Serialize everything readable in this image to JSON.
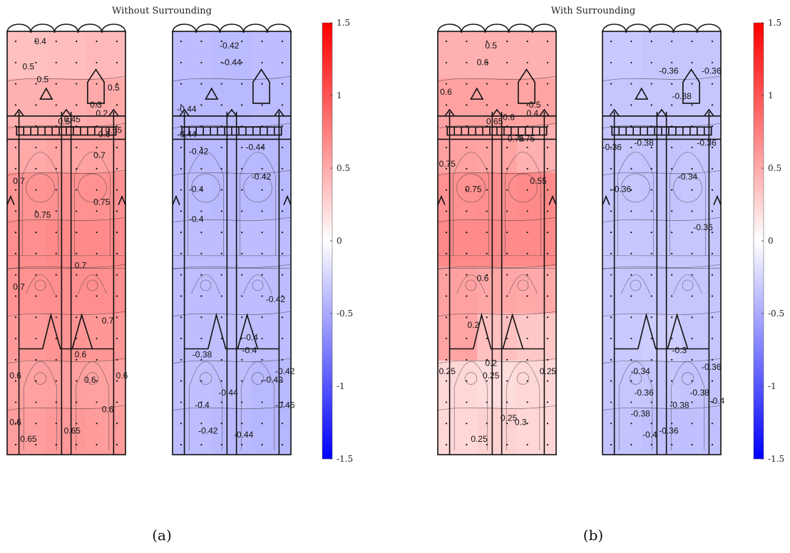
{
  "figure": {
    "captions": [
      "(a)",
      "(b)"
    ],
    "titles": [
      "Without Surrounding",
      "With Surrounding"
    ]
  },
  "chart_data": [
    {
      "type": "heatmap",
      "title": "Without Surrounding",
      "caption": "(a)",
      "colormap": {
        "min": -1.5,
        "max": 1.5,
        "low": "#0000ff",
        "mid": "#ffffff",
        "high": "#ff0000"
      },
      "colorbar_ticks": [
        "1.5",
        "1",
        "0.5",
        "0",
        "-0.5",
        "-1",
        "-1.5"
      ],
      "panels": [
        {
          "name": "windward",
          "field": [
            [
              0.4,
              0.42,
              0.45
            ],
            [
              0.5,
              0.52,
              0.55
            ],
            [
              0.55,
              0.58,
              0.6
            ],
            [
              0.68,
              0.7,
              0.7
            ],
            [
              0.72,
              0.75,
              0.75
            ],
            [
              0.7,
              0.72,
              0.72
            ],
            [
              0.65,
              0.68,
              0.66
            ],
            [
              0.6,
              0.62,
              0.6
            ],
            [
              0.62,
              0.65,
              0.63
            ]
          ],
          "contour_labels": [
            "0.4",
            "0.5",
            "0.5",
            "0.5",
            "0.3",
            "0.2",
            "0.45",
            "0.5",
            "0.6",
            "0.65",
            "0.7",
            "0.7",
            "0.75",
            "0.75",
            "0.7",
            "0.7",
            "0.7",
            "0.6",
            "0.6",
            "0.6",
            "0.6",
            "0.6",
            "0.6",
            "0.65",
            "0.65"
          ]
        },
        {
          "name": "leeward",
          "field": [
            [
              -0.42,
              -0.43,
              -0.42
            ],
            [
              -0.44,
              -0.44,
              -0.43
            ],
            [
              -0.44,
              -0.44,
              -0.44
            ],
            [
              -0.43,
              -0.44,
              -0.44
            ],
            [
              -0.41,
              -0.42,
              -0.42
            ],
            [
              -0.42,
              -0.42,
              -0.42
            ],
            [
              -0.41,
              -0.4,
              -0.42
            ],
            [
              -0.4,
              -0.41,
              -0.44
            ],
            [
              -0.42,
              -0.44,
              -0.46
            ]
          ],
          "contour_labels": [
            "-0.42",
            "-0.44",
            "-0.44",
            "-0.44",
            "-0.42",
            "-0.44",
            "-0.42",
            "-0.4",
            "-0.4",
            "-0.42",
            "-0.4",
            "-0.38",
            "-0.4",
            "-0.42",
            "-0.44",
            "-0.4",
            "-0.44",
            "-0.42",
            "-0.46",
            "-0.42"
          ]
        }
      ]
    },
    {
      "type": "heatmap",
      "title": "With Surrounding",
      "caption": "(b)",
      "colormap": {
        "min": -1.5,
        "max": 1.5,
        "low": "#0000ff",
        "mid": "#ffffff",
        "high": "#ff0000"
      },
      "colorbar_ticks": [
        "1.5",
        "1",
        "0.5",
        "0",
        "-0.5",
        "-1",
        "-1.5"
      ],
      "panels": [
        {
          "name": "windward",
          "field": [
            [
              0.5,
              0.5,
              0.5
            ],
            [
              0.6,
              0.6,
              0.58
            ],
            [
              0.6,
              0.58,
              0.5
            ],
            [
              0.7,
              0.72,
              0.75
            ],
            [
              0.75,
              0.75,
              0.75
            ],
            [
              0.6,
              0.56,
              0.55
            ],
            [
              0.58,
              0.4,
              0.35
            ],
            [
              0.25,
              0.22,
              0.25
            ],
            [
              0.25,
              0.28,
              0.25
            ]
          ],
          "contour_labels": [
            "0.5",
            "0.6",
            "0.6",
            "0.5",
            "0.4",
            "0.6",
            "0.65",
            "0.75",
            "0.75",
            "0.75",
            "0.75",
            "0.55",
            "0.6",
            "0.2",
            "0.2",
            "0.25",
            "0.25",
            "0.25",
            "0.25",
            "0.3",
            "0.25"
          ]
        },
        {
          "name": "leeward",
          "field": [
            [
              -0.34,
              -0.36,
              -0.36
            ],
            [
              -0.36,
              -0.36,
              -0.36
            ],
            [
              -0.37,
              -0.38,
              -0.36
            ],
            [
              -0.36,
              -0.38,
              -0.36
            ],
            [
              -0.35,
              -0.36,
              -0.36
            ],
            [
              -0.36,
              -0.36,
              -0.36
            ],
            [
              -0.34,
              -0.32,
              -0.36
            ],
            [
              -0.36,
              -0.36,
              -0.38
            ],
            [
              -0.38,
              -0.4,
              -0.4
            ]
          ],
          "contour_labels": [
            "-0.36",
            "-0.36",
            "-0.38",
            "-0.38",
            "-0.36",
            "-0.36",
            "-0.34",
            "-0.36",
            "-0.36",
            "-0.3",
            "-0.34",
            "-0.36",
            "-0.38",
            "-0.36",
            "-0.38",
            "-0.4",
            "-0.38",
            "-0.4",
            "-0.36"
          ]
        }
      ]
    }
  ]
}
